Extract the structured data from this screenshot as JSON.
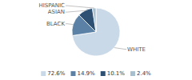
{
  "chart_data": {
    "type": "pie",
    "categories": [
      "WHITE",
      "BLACK",
      "ASIAN",
      "HISPANIC"
    ],
    "values": [
      72.6,
      14.9,
      10.1,
      2.4
    ],
    "value_labels": [
      "72.6%",
      "14.9%",
      "10.1%",
      "2.4%"
    ],
    "colors": [
      "#c9d9e8",
      "#5b82a6",
      "#2d5073",
      "#a8bfcf"
    ],
    "legend": "bottom"
  }
}
